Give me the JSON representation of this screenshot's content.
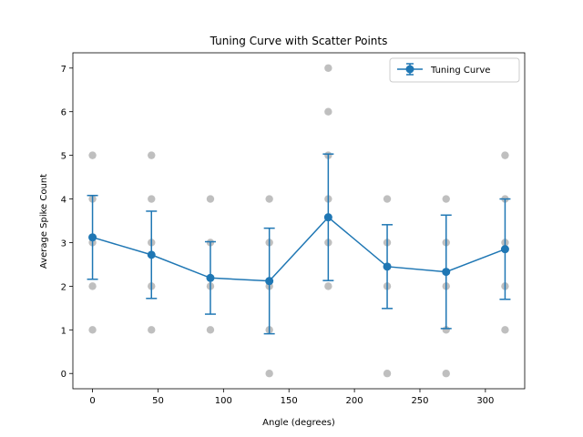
{
  "chart_data": {
    "type": "line",
    "title": "Tuning Curve with Scatter Points",
    "xlabel": "Angle (degrees)",
    "ylabel": "Average Spike Count",
    "xlim": [
      -15,
      330
    ],
    "ylim": [
      -0.35,
      7.35
    ],
    "xticks": [
      0,
      50,
      100,
      150,
      200,
      250,
      300
    ],
    "yticks": [
      0,
      1,
      2,
      3,
      4,
      5,
      6,
      7
    ],
    "grid": false,
    "legend_position": "top-right",
    "series": [
      {
        "name": "Tuning Curve",
        "kind": "line-errorbar",
        "color": "#1f77b4",
        "x": [
          0,
          45,
          90,
          135,
          180,
          225,
          270,
          315
        ],
        "y": [
          3.12,
          2.72,
          2.19,
          2.12,
          3.58,
          2.45,
          2.33,
          2.85
        ],
        "error": [
          0.96,
          1.0,
          0.83,
          1.21,
          1.45,
          0.96,
          1.3,
          1.15
        ]
      }
    ],
    "scatter": {
      "color": "#808080",
      "points": [
        [
          0,
          5
        ],
        [
          0,
          4
        ],
        [
          0,
          3
        ],
        [
          0,
          2
        ],
        [
          0,
          1
        ],
        [
          45,
          5
        ],
        [
          45,
          4
        ],
        [
          45,
          3
        ],
        [
          45,
          2
        ],
        [
          45,
          1
        ],
        [
          90,
          4
        ],
        [
          90,
          3
        ],
        [
          90,
          2
        ],
        [
          90,
          1
        ],
        [
          135,
          4
        ],
        [
          135,
          3
        ],
        [
          135,
          2
        ],
        [
          135,
          1
        ],
        [
          135,
          0
        ],
        [
          180,
          7
        ],
        [
          180,
          6
        ],
        [
          180,
          5
        ],
        [
          180,
          4
        ],
        [
          180,
          3
        ],
        [
          180,
          2
        ],
        [
          225,
          4
        ],
        [
          225,
          3
        ],
        [
          225,
          2
        ],
        [
          225,
          0
        ],
        [
          270,
          4
        ],
        [
          270,
          3
        ],
        [
          270,
          2
        ],
        [
          270,
          1
        ],
        [
          270,
          0
        ],
        [
          315,
          5
        ],
        [
          315,
          4
        ],
        [
          315,
          3
        ],
        [
          315,
          2
        ],
        [
          315,
          1
        ]
      ]
    }
  }
}
